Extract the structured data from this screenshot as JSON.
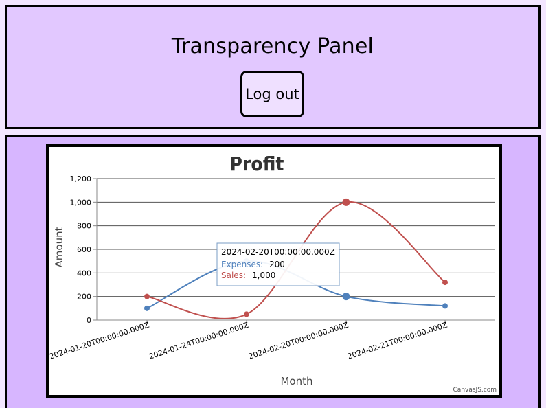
{
  "header": {
    "title": "Transparency Panel",
    "logout_label": "Log out"
  },
  "colors": {
    "expenses": "#4f81bc",
    "sales": "#c0504e",
    "header_bg": "#e2c8ff",
    "chart_panel_bg": "#d7b6ff"
  },
  "chart_data": {
    "type": "line",
    "title": "Profit",
    "xlabel": "Month",
    "ylabel": "Amount",
    "categories": [
      "2024-01-20T00:00:00.000Z",
      "2024-01-24T00:00:00.000Z",
      "2024-02-20T00:00:00.000Z",
      "2024-02-21T00:00:00.000Z"
    ],
    "series": [
      {
        "name": "Expenses",
        "values": [
          100,
          500,
          200,
          120
        ]
      },
      {
        "name": "Sales",
        "values": [
          200,
          50,
          1000,
          320
        ]
      }
    ],
    "ylim": [
      0,
      1200
    ],
    "yticks": [
      "0",
      "200",
      "400",
      "600",
      "800",
      "1,000",
      "1,200"
    ],
    "grid": true,
    "credit": "CanvasJS.com",
    "tooltip": {
      "header": "2024-02-20T00:00:00.000Z",
      "rows": [
        {
          "label": "Expenses:",
          "value": "200"
        },
        {
          "label": "Sales:",
          "value": "1,000"
        }
      ]
    }
  }
}
